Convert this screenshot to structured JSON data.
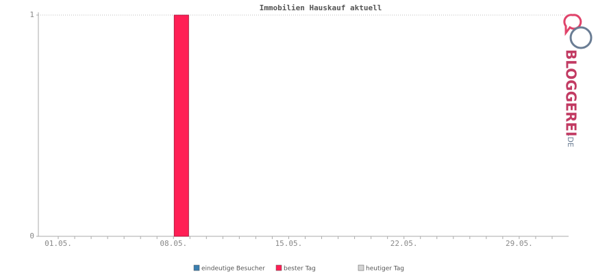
{
  "chart_data": {
    "type": "bar",
    "title": "Immobilien Hauskauf aktuell",
    "categories": [
      "01.05.",
      null,
      null,
      null,
      null,
      null,
      null,
      "08.05.",
      null,
      null,
      null,
      null,
      null,
      null,
      "15.05.",
      null,
      null,
      null,
      null,
      null,
      null,
      "22.05.",
      null,
      null,
      null,
      null,
      null,
      null,
      "29.05.",
      null,
      null
    ],
    "series": [
      {
        "name": "eindeutige Besucher",
        "color": "#3a7fb0",
        "values": [
          null,
          null,
          null,
          null,
          null,
          null,
          null,
          null,
          null,
          null,
          null,
          null,
          null,
          null,
          null,
          null,
          null,
          null,
          null,
          null,
          null,
          null,
          null,
          null,
          null,
          null,
          null,
          null,
          null,
          null,
          null
        ]
      },
      {
        "name": "bester Tag",
        "color": "#ff1f55",
        "values": [
          null,
          null,
          null,
          null,
          null,
          null,
          null,
          1,
          null,
          null,
          null,
          null,
          null,
          null,
          null,
          null,
          null,
          null,
          null,
          null,
          null,
          null,
          null,
          null,
          null,
          null,
          null,
          null,
          null,
          null,
          null
        ]
      },
      {
        "name": "heutiger Tag",
        "color": "#d4d4d4",
        "values": [
          null,
          null,
          null,
          null,
          null,
          null,
          null,
          null,
          null,
          null,
          null,
          null,
          null,
          null,
          null,
          null,
          null,
          null,
          null,
          null,
          null,
          null,
          null,
          null,
          null,
          null,
          null,
          null,
          null,
          null,
          null
        ]
      }
    ],
    "ylim": [
      0,
      1
    ],
    "yticks": [
      0,
      1
    ],
    "grid": true,
    "logo": {
      "name": "BLOGGEREI",
      "suffix": ".DE"
    }
  }
}
